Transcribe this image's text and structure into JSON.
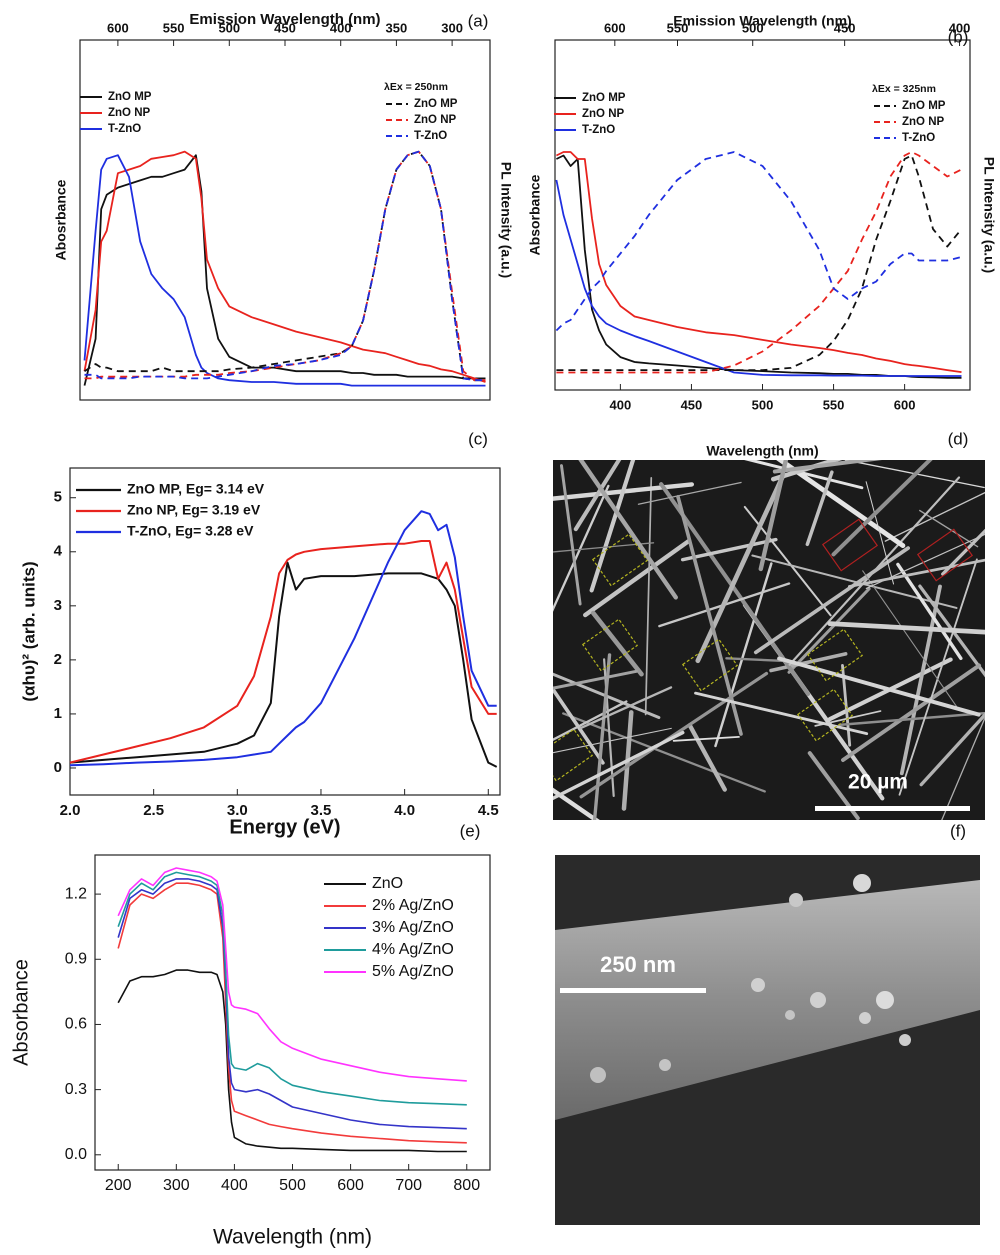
{
  "chart_data": [
    {
      "type": "line",
      "label": "(a)",
      "xlabel": "Emission Wavelength (nm)",
      "xaxis": "top",
      "ylabel": "Abosrbance",
      "y2label": "PL Intensity (a.u.)",
      "annotation": "λEx = 250nm",
      "xlim": [
        634,
        266
      ],
      "xticks": [
        600,
        550,
        500,
        450,
        400,
        350,
        300
      ],
      "ylim": [
        0,
        1
      ],
      "x": [
        630,
        620,
        615,
        610,
        600,
        590,
        580,
        570,
        560,
        550,
        540,
        530,
        525,
        520,
        510,
        500,
        480,
        460,
        440,
        420,
        400,
        390,
        380,
        370,
        360,
        350,
        340,
        330,
        320,
        310,
        300,
        290,
        280,
        270
      ],
      "series": [
        {
          "name": "ZnO MP",
          "color": "#111111",
          "dash": false,
          "values": [
            0.04,
            0.17,
            0.53,
            0.57,
            0.59,
            0.6,
            0.61,
            0.62,
            0.62,
            0.63,
            0.64,
            0.68,
            0.58,
            0.31,
            0.17,
            0.12,
            0.09,
            0.09,
            0.08,
            0.08,
            0.08,
            0.075,
            0.075,
            0.07,
            0.07,
            0.07,
            0.065,
            0.065,
            0.065,
            0.065,
            0.065,
            0.06,
            0.06,
            0.06
          ]
        },
        {
          "name": "ZnO NP",
          "color": "#e8231e",
          "dash": false,
          "values": [
            0.08,
            0.25,
            0.44,
            0.47,
            0.63,
            0.64,
            0.65,
            0.67,
            0.675,
            0.68,
            0.69,
            0.67,
            0.56,
            0.39,
            0.31,
            0.26,
            0.23,
            0.21,
            0.19,
            0.175,
            0.16,
            0.15,
            0.14,
            0.135,
            0.13,
            0.12,
            0.11,
            0.1,
            0.095,
            0.085,
            0.08,
            0.07,
            0.06,
            0.05
          ]
        },
        {
          "name": "T-ZnO",
          "color": "#1f2fe0",
          "dash": false,
          "values": [
            0.11,
            0.47,
            0.64,
            0.67,
            0.68,
            0.62,
            0.44,
            0.35,
            0.31,
            0.28,
            0.23,
            0.125,
            0.09,
            0.075,
            0.06,
            0.055,
            0.05,
            0.05,
            0.045,
            0.045,
            0.045,
            0.04,
            0.04,
            0.04,
            0.04,
            0.04,
            0.04,
            0.04,
            0.04,
            0.04,
            0.04,
            0.04,
            0.04,
            0.04
          ]
        },
        {
          "name": "ZnO MP",
          "color": "#111111",
          "dash": true,
          "values": [
            0.08,
            0.1,
            0.09,
            0.09,
            0.08,
            0.08,
            0.08,
            0.08,
            0.09,
            0.08,
            0.08,
            0.08,
            0.08,
            0.08,
            0.08,
            0.085,
            0.09,
            0.1,
            0.11,
            0.12,
            0.13,
            0.15,
            0.22,
            0.36,
            0.53,
            0.64,
            0.68,
            0.69,
            0.65,
            0.53,
            0.28,
            0.06,
            0.055,
            0.055
          ]
        },
        {
          "name": "ZnO NP",
          "color": "#e8231e",
          "dash": true,
          "values": [
            0.06,
            0.06,
            0.065,
            0.065,
            0.065,
            0.065,
            0.065,
            0.065,
            0.065,
            0.065,
            0.065,
            0.07,
            0.07,
            0.07,
            0.07,
            0.075,
            0.08,
            0.09,
            0.1,
            0.11,
            0.13,
            0.15,
            0.22,
            0.36,
            0.53,
            0.64,
            0.68,
            0.69,
            0.65,
            0.53,
            0.3,
            0.08,
            0.055,
            0.055
          ]
        },
        {
          "name": "T-ZnO",
          "color": "#1f2fe0",
          "dash": true,
          "values": [
            0.07,
            0.07,
            0.06,
            0.06,
            0.06,
            0.06,
            0.065,
            0.065,
            0.065,
            0.065,
            0.06,
            0.06,
            0.06,
            0.06,
            0.065,
            0.07,
            0.08,
            0.095,
            0.1,
            0.11,
            0.125,
            0.15,
            0.22,
            0.36,
            0.53,
            0.64,
            0.68,
            0.69,
            0.65,
            0.53,
            0.28,
            0.06,
            0.055,
            0.055
          ]
        }
      ]
    },
    {
      "type": "line",
      "label": "(b)",
      "xlabel": "Wavelength (nm)",
      "x2label": "Emission Wavelength (nm)",
      "ylabel": "Absorbance",
      "y2label": "PL Intensity (a.u.)",
      "annotation": "λEx = 325nm",
      "xlim": [
        354,
        646
      ],
      "xticks": [
        400,
        450,
        500,
        550,
        600
      ],
      "x2lim": [
        657,
        396
      ],
      "x2scale": "reciprocal",
      "x2ticks": [
        600,
        550,
        500,
        450,
        400
      ],
      "ylim": [
        0,
        1
      ],
      "x": [
        355,
        360,
        365,
        370,
        375,
        380,
        385,
        390,
        400,
        410,
        420,
        440,
        460,
        480,
        500,
        520,
        540,
        550,
        560,
        570,
        580,
        590,
        600,
        605,
        610,
        620,
        630,
        640
      ],
      "series": [
        {
          "name": "ZnO MP",
          "color": "#111111",
          "dash": false,
          "values": [
            0.66,
            0.67,
            0.64,
            0.66,
            0.4,
            0.23,
            0.17,
            0.13,
            0.094,
            0.08,
            0.076,
            0.07,
            0.063,
            0.057,
            0.054,
            0.05,
            0.048,
            0.046,
            0.046,
            0.043,
            0.043,
            0.04,
            0.04,
            0.038,
            0.037,
            0.036,
            0.035,
            0.035
          ]
        },
        {
          "name": "ZnO NP",
          "color": "#e8231e",
          "dash": false,
          "values": [
            0.67,
            0.68,
            0.68,
            0.66,
            0.66,
            0.49,
            0.36,
            0.3,
            0.24,
            0.21,
            0.2,
            0.18,
            0.165,
            0.157,
            0.143,
            0.13,
            0.12,
            0.114,
            0.106,
            0.1,
            0.09,
            0.083,
            0.074,
            0.071,
            0.069,
            0.063,
            0.057,
            0.051
          ]
        },
        {
          "name": "T-ZnO",
          "color": "#1f2fe0",
          "dash": false,
          "values": [
            0.6,
            0.5,
            0.43,
            0.36,
            0.29,
            0.24,
            0.21,
            0.19,
            0.17,
            0.154,
            0.14,
            0.11,
            0.08,
            0.05,
            0.043,
            0.042,
            0.042,
            0.041,
            0.041,
            0.041,
            0.04,
            0.04,
            0.04,
            0.04,
            0.04,
            0.04,
            0.04,
            0.04
          ]
        },
        {
          "name": "ZnO MP",
          "color": "#111111",
          "dash": true,
          "values": [
            0.057,
            0.057,
            0.057,
            0.057,
            0.057,
            0.057,
            0.057,
            0.057,
            0.057,
            0.057,
            0.057,
            0.057,
            0.057,
            0.057,
            0.057,
            0.063,
            0.1,
            0.14,
            0.2,
            0.29,
            0.43,
            0.54,
            0.66,
            0.67,
            0.61,
            0.46,
            0.41,
            0.46
          ]
        },
        {
          "name": "ZnO NP",
          "color": "#e8231e",
          "dash": true,
          "values": [
            0.05,
            0.05,
            0.05,
            0.05,
            0.05,
            0.05,
            0.05,
            0.05,
            0.05,
            0.05,
            0.05,
            0.05,
            0.05,
            0.07,
            0.11,
            0.17,
            0.24,
            0.29,
            0.34,
            0.43,
            0.51,
            0.61,
            0.67,
            0.68,
            0.67,
            0.64,
            0.61,
            0.63
          ]
        },
        {
          "name": "T-ZnO",
          "color": "#1f2fe0",
          "dash": true,
          "values": [
            0.17,
            0.19,
            0.2,
            0.23,
            0.26,
            0.29,
            0.31,
            0.34,
            0.39,
            0.44,
            0.5,
            0.6,
            0.66,
            0.68,
            0.64,
            0.54,
            0.4,
            0.29,
            0.26,
            0.29,
            0.31,
            0.36,
            0.39,
            0.39,
            0.37,
            0.37,
            0.37,
            0.38
          ]
        }
      ]
    },
    {
      "type": "line",
      "label": "(c)",
      "xlabel": "Energy (eV)",
      "ylabel": "(αhυ)² (arb. units)",
      "xlim": [
        2.0,
        4.57
      ],
      "xticks": [
        {
          "value": 2,
          "label": "2.0"
        },
        2.5,
        {
          "value": 3,
          "label": "3.0"
        },
        3.5,
        {
          "value": 4,
          "label": "4.0"
        },
        4.5
      ],
      "ylim": [
        -0.5,
        5.55
      ],
      "yticks": [
        0,
        1,
        2,
        3,
        4,
        5
      ],
      "x": [
        2.0,
        2.2,
        2.4,
        2.6,
        2.8,
        3.0,
        3.1,
        3.2,
        3.25,
        3.3,
        3.35,
        3.4,
        3.5,
        3.7,
        3.9,
        4.0,
        4.1,
        4.15,
        4.2,
        4.25,
        4.3,
        4.35,
        4.4,
        4.5,
        4.55
      ],
      "series": [
        {
          "name": "ZnO MP, Eg= 3.14 eV",
          "color": "#111111",
          "dash": false,
          "values": [
            0.1,
            0.15,
            0.2,
            0.25,
            0.3,
            0.45,
            0.6,
            1.2,
            2.8,
            3.8,
            3.3,
            3.5,
            3.55,
            3.55,
            3.6,
            3.6,
            3.6,
            3.55,
            3.5,
            3.3,
            3.0,
            2.0,
            0.9,
            0.1,
            0.02
          ]
        },
        {
          "name": "Zno NP, Eg= 3.19 eV",
          "color": "#e8231e",
          "dash": false,
          "values": [
            0.1,
            0.25,
            0.4,
            0.55,
            0.75,
            1.15,
            1.7,
            2.8,
            3.6,
            3.85,
            3.95,
            4.0,
            4.05,
            4.1,
            4.15,
            4.15,
            4.2,
            4.2,
            3.5,
            3.8,
            3.3,
            2.4,
            1.5,
            1.0,
            1.0
          ]
        },
        {
          "name": "T-ZnO, Eg= 3.28 eV",
          "color": "#1f2fe0",
          "dash": false,
          "values": [
            0.05,
            0.07,
            0.1,
            0.12,
            0.15,
            0.2,
            0.25,
            0.3,
            0.45,
            0.6,
            0.75,
            0.85,
            1.2,
            2.4,
            3.8,
            4.4,
            4.75,
            4.7,
            4.4,
            4.5,
            3.9,
            2.8,
            1.8,
            1.15,
            1.15
          ]
        }
      ]
    },
    {
      "type": "line",
      "label": "(e)",
      "xlabel": "Wavelength (nm)",
      "ylabel": "Absorbance",
      "xlim": [
        160,
        840
      ],
      "xticks": [
        200,
        300,
        400,
        500,
        600,
        700,
        800
      ],
      "ylim": [
        -0.07,
        1.38
      ],
      "yticks": [
        {
          "value": 0,
          "label": "0.0"
        },
        0.3,
        0.6,
        0.9,
        1.2
      ],
      "x": [
        200,
        220,
        240,
        260,
        280,
        300,
        320,
        340,
        360,
        370,
        380,
        385,
        390,
        395,
        400,
        420,
        440,
        460,
        480,
        500,
        550,
        600,
        650,
        700,
        750,
        800
      ],
      "series": [
        {
          "name": "ZnO",
          "color": "#111111",
          "dash": false,
          "values": [
            0.7,
            0.8,
            0.82,
            0.82,
            0.83,
            0.85,
            0.85,
            0.84,
            0.84,
            0.83,
            0.75,
            0.6,
            0.3,
            0.15,
            0.08,
            0.05,
            0.04,
            0.035,
            0.03,
            0.03,
            0.025,
            0.02,
            0.02,
            0.02,
            0.015,
            0.015
          ]
        },
        {
          "name": "2% Ag/ZnO",
          "color": "#f23b3b",
          "dash": false,
          "values": [
            0.95,
            1.15,
            1.2,
            1.18,
            1.22,
            1.25,
            1.25,
            1.24,
            1.22,
            1.2,
            1.0,
            0.7,
            0.4,
            0.25,
            0.2,
            0.18,
            0.16,
            0.14,
            0.13,
            0.12,
            0.1,
            0.085,
            0.075,
            0.065,
            0.06,
            0.055
          ]
        },
        {
          "name": "3% Ag/ZnO",
          "color": "#3434c8",
          "dash": false,
          "values": [
            1.0,
            1.18,
            1.22,
            1.2,
            1.25,
            1.27,
            1.27,
            1.26,
            1.24,
            1.22,
            1.05,
            0.8,
            0.45,
            0.33,
            0.3,
            0.29,
            0.3,
            0.28,
            0.25,
            0.22,
            0.19,
            0.16,
            0.14,
            0.13,
            0.125,
            0.12
          ]
        },
        {
          "name": "4% Ag/ZnO",
          "color": "#1f9c9c",
          "dash": false,
          "values": [
            1.05,
            1.2,
            1.25,
            1.22,
            1.28,
            1.3,
            1.29,
            1.28,
            1.26,
            1.24,
            1.1,
            0.85,
            0.55,
            0.42,
            0.4,
            0.39,
            0.42,
            0.4,
            0.35,
            0.32,
            0.29,
            0.27,
            0.25,
            0.24,
            0.235,
            0.23
          ]
        },
        {
          "name": "5% Ag/ZnO",
          "color": "#ff33ff",
          "dash": false,
          "values": [
            1.1,
            1.22,
            1.27,
            1.24,
            1.3,
            1.32,
            1.31,
            1.3,
            1.28,
            1.26,
            1.15,
            0.95,
            0.75,
            0.69,
            0.68,
            0.67,
            0.65,
            0.58,
            0.52,
            0.49,
            0.44,
            0.41,
            0.38,
            0.36,
            0.35,
            0.34
          ]
        }
      ]
    }
  ],
  "images": [
    {
      "label": "(d)",
      "scale_bar": "20 µm"
    },
    {
      "label": "(f)",
      "scale_bar": "250 nm"
    }
  ]
}
